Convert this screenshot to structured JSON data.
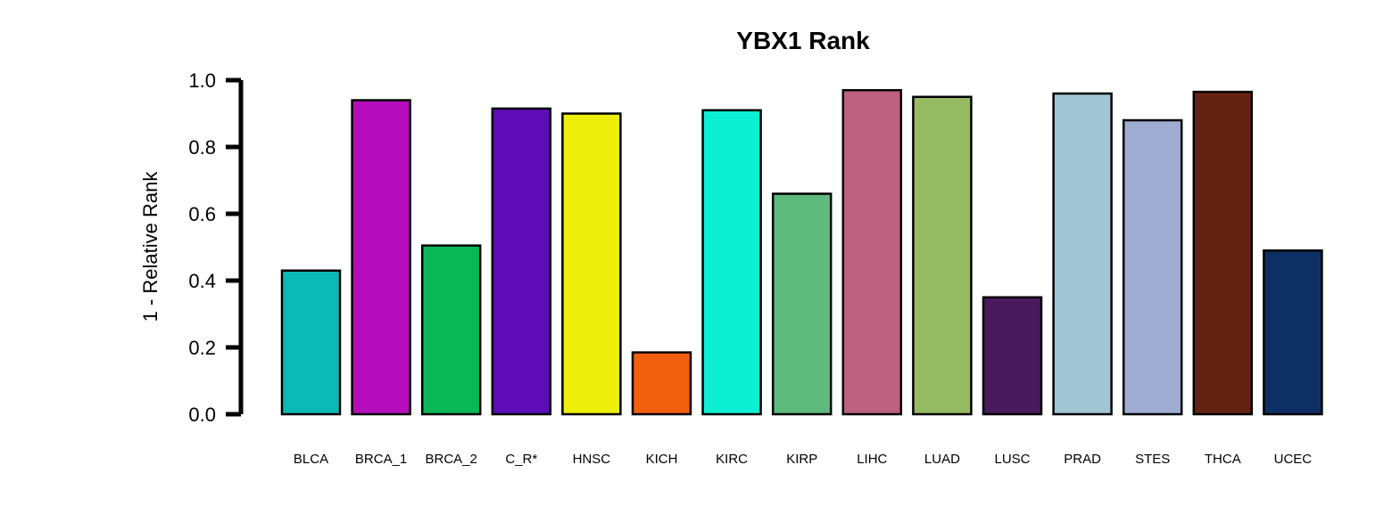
{
  "chart_data": {
    "type": "bar",
    "title": "YBX1 Rank",
    "xlabel": "",
    "ylabel": "1 - Relative Rank",
    "ylim": [
      0,
      1.0
    ],
    "yticks": [
      "0.0",
      "0.2",
      "0.4",
      "0.6",
      "0.8",
      "1.0"
    ],
    "ytick_values": [
      0.0,
      0.2,
      0.4,
      0.6,
      0.8,
      1.0
    ],
    "grid": false,
    "legend": "none",
    "categories": [
      "BLCA",
      "BRCA_1",
      "BRCA_2",
      "C_R*",
      "HNSC",
      "KICH",
      "KIRC",
      "KIRP",
      "LIHC",
      "LUAD",
      "LUSC",
      "PRAD",
      "STES",
      "THCA",
      "UCEC"
    ],
    "values": [
      0.43,
      0.94,
      0.505,
      0.915,
      0.9,
      0.185,
      0.91,
      0.66,
      0.97,
      0.95,
      0.35,
      0.96,
      0.88,
      0.965,
      0.49
    ],
    "colors": [
      "#0ABAB5",
      "#B50DBB",
      "#08B857",
      "#5E0BB8",
      "#EFEF0C",
      "#F25F0E",
      "#0DEFD3",
      "#5FBA7E",
      "#BD6181",
      "#97BB62",
      "#491B5E",
      "#A0C5D3",
      "#9FADD2",
      "#642312",
      "#0E2F64"
    ],
    "bar_edge_color": "#000000",
    "axis_color": "#000000"
  }
}
